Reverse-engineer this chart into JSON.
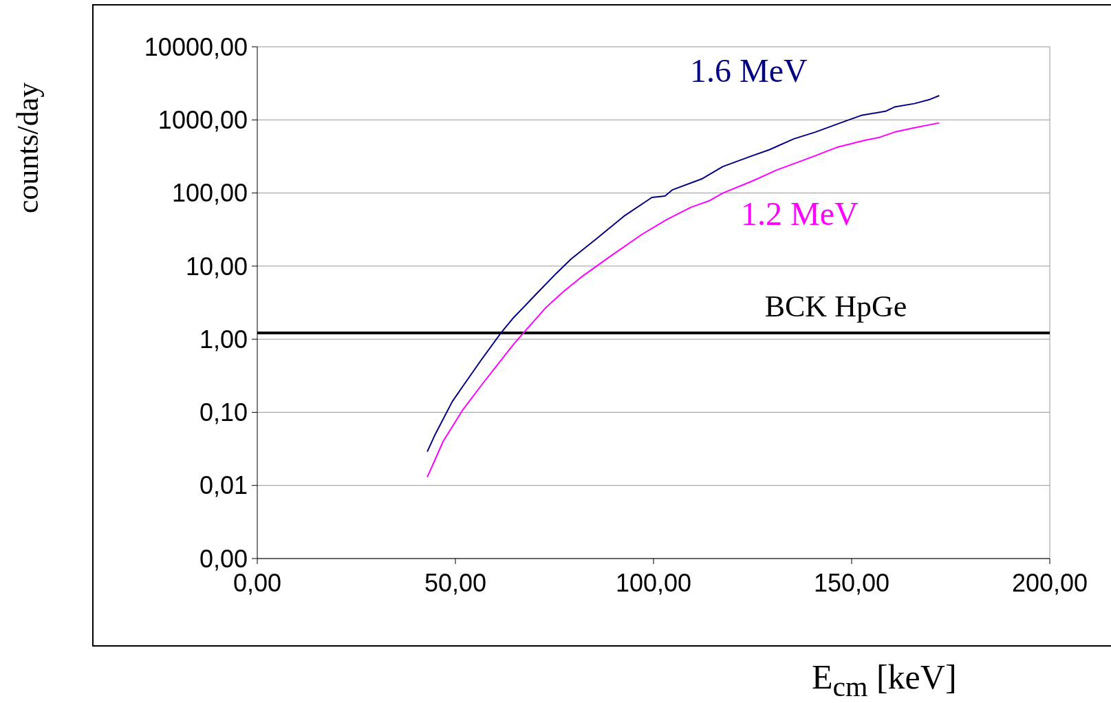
{
  "chart_data": {
    "type": "line",
    "xlabel": "E$_{cm}$ [keV]",
    "ylabel": "counts/day",
    "log": "y",
    "grid": "y",
    "legend": false,
    "marker": "none",
    "line_style": "solid",
    "xlim": [
      0,
      200
    ],
    "xticks": [
      {
        "value": 0,
        "label": "0,00"
      },
      {
        "value": 50,
        "label": "50,00"
      },
      {
        "value": 100,
        "label": "100,00"
      },
      {
        "value": 150,
        "label": "150,00"
      },
      {
        "value": 200,
        "label": "200,00"
      }
    ],
    "ylim": [
      0.001,
      10000
    ],
    "yticks": [
      {
        "value": 0.001,
        "label": "0,00"
      },
      {
        "value": 0.01,
        "label": "0,01"
      },
      {
        "value": 0.1,
        "label": "0,10"
      },
      {
        "value": 1,
        "label": "1,00"
      },
      {
        "value": 10,
        "label": "10,00"
      },
      {
        "value": 100,
        "label": "100,00"
      },
      {
        "value": 1000,
        "label": "1000,00"
      },
      {
        "value": 10000,
        "label": "10000,00"
      }
    ],
    "series": [
      {
        "name": "1.6 MeV",
        "color": "#000080",
        "x": [
          42.9,
          44.9,
          49.2,
          51.7,
          56.4,
          61.4,
          64.4,
          70.3,
          75.5,
          79.2,
          85.3,
          92.5,
          99.6,
          102.9,
          104.7,
          112.2,
          117.5,
          124.7,
          129.2,
          135.4,
          140.8,
          147.9,
          152.4,
          158.7,
          160.8,
          165.8,
          169.8,
          172.1
        ],
        "values": [
          0.029,
          0.05,
          0.14,
          0.22,
          0.51,
          1.2,
          1.9,
          4.1,
          8,
          12.5,
          23,
          48,
          87,
          91,
          110,
          156,
          230,
          320,
          390,
          550,
          680,
          940,
          1150,
          1320,
          1500,
          1670,
          1910,
          2150
        ]
      },
      {
        "name": "1.2 MeV",
        "color": "#ff00ff",
        "x": [
          42.9,
          46.9,
          51.7,
          56.7,
          64.8,
          72.8,
          77.3,
          81.8,
          88.9,
          97.0,
          103.2,
          109.5,
          114.0,
          117.5,
          124.7,
          131.0,
          139.9,
          146.2,
          153.3,
          156.9,
          160.8,
          165.8,
          172.1
        ],
        "values": [
          0.013,
          0.04,
          0.105,
          0.24,
          0.87,
          2.7,
          4.5,
          7.1,
          13.4,
          27,
          43,
          64,
          78,
          100,
          144,
          205,
          310,
          420,
          525,
          575,
          680,
          780,
          910
        ]
      }
    ],
    "ref_lines": [
      {
        "axis": "y",
        "value": 1.22,
        "label": "BCK HpGe",
        "color": "#000000",
        "line_style": "solid"
      }
    ]
  }
}
